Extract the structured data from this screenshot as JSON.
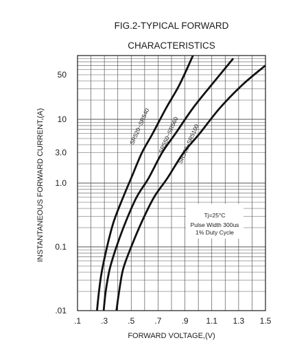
{
  "chart_data": {
    "type": "line",
    "title": "FIG.2-TYPICAL FORWARD",
    "subtitle": "CHARACTERISTICS",
    "xlabel": "FORWARD VOLTAGE,(V)",
    "ylabel": "INSTANTANEOUS FORWARD CURRENT,(A)",
    "xlim": [
      0.1,
      1.5
    ],
    "ylim": [
      0.01,
      100
    ],
    "yscale": "log",
    "grid": true,
    "x_ticks": [
      ".1",
      ".3",
      ".5",
      ".7",
      ".9",
      "1.1",
      "1.3",
      "1.5"
    ],
    "y_ticks": [
      {
        "value": 50,
        "label": "50"
      },
      {
        "value": 10,
        "label": "10"
      },
      {
        "value": 3,
        "label": "3.0"
      },
      {
        "value": 1,
        "label": "1.0"
      },
      {
        "value": 0.1,
        "label": "0.1"
      },
      {
        "value": 0.01,
        "label": ".01"
      }
    ],
    "annotations": [
      "Tj=25°C",
      "Pulse Width 300us",
      "1% Duty Cycle"
    ],
    "series": [
      {
        "name": "SR520~SR540",
        "x": [
          0.245,
          0.26,
          0.28,
          0.32,
          0.37,
          0.44,
          0.5,
          0.58,
          0.66,
          0.76,
          0.86,
          0.96
        ],
        "y": [
          0.01,
          0.02,
          0.04,
          0.1,
          0.25,
          0.6,
          1.2,
          3,
          6,
          15,
          35,
          100
        ]
      },
      {
        "name": "SR550~SR560",
        "x": [
          0.295,
          0.31,
          0.34,
          0.39,
          0.46,
          0.54,
          0.63,
          0.73,
          0.83,
          0.96,
          1.1,
          1.26
        ],
        "y": [
          0.01,
          0.02,
          0.045,
          0.1,
          0.25,
          0.6,
          1.2,
          3,
          6,
          15,
          35,
          90
        ]
      },
      {
        "name": "SR560~SR5100",
        "x": [
          0.39,
          0.41,
          0.44,
          0.5,
          0.58,
          0.67,
          0.77,
          0.89,
          1.01,
          1.16,
          1.33,
          1.5
        ],
        "y": [
          0.01,
          0.02,
          0.045,
          0.1,
          0.25,
          0.6,
          1.2,
          3,
          6,
          15,
          35,
          70
        ]
      }
    ]
  }
}
